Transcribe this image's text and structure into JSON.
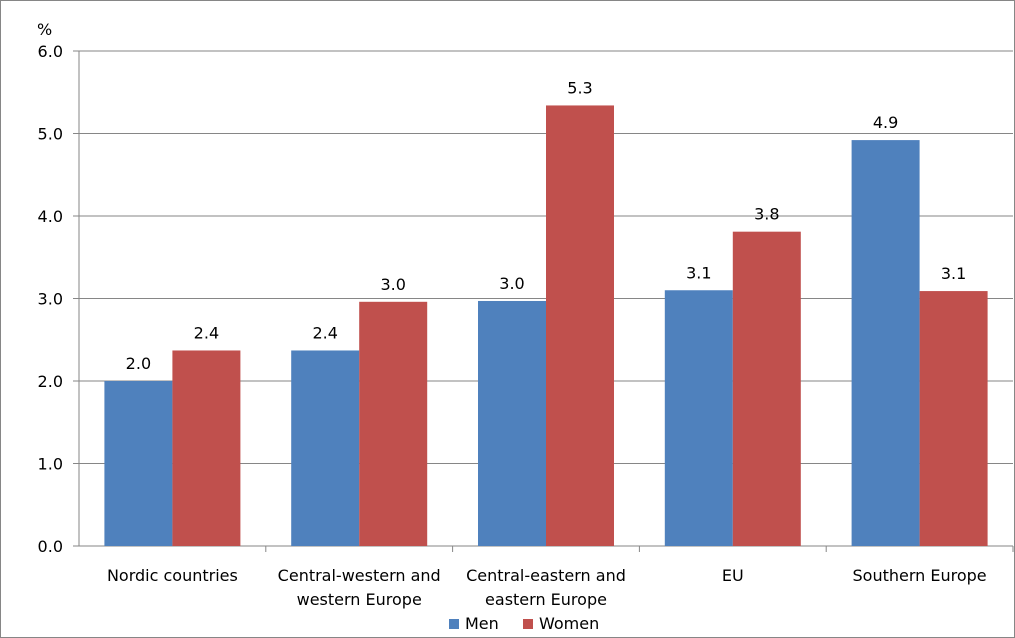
{
  "chart_data": {
    "type": "bar",
    "unit_label": "%",
    "categories": [
      [
        "Nordic countries"
      ],
      [
        "Central-western and",
        "western Europe"
      ],
      [
        "Central-eastern and",
        "eastern Europe"
      ],
      [
        "EU"
      ],
      [
        "Southern Europe"
      ]
    ],
    "series": [
      {
        "name": "Men",
        "color": "#4F81BD",
        "values": [
          2.0,
          2.37,
          2.97,
          3.1,
          4.92
        ],
        "labels": [
          "2.0",
          "2.4",
          "3.0",
          "3.1",
          "4.9"
        ]
      },
      {
        "name": "Women",
        "color": "#C0504D",
        "values": [
          2.37,
          2.96,
          5.34,
          3.81,
          3.09
        ],
        "labels": [
          "2.4",
          "3.0",
          "5.3",
          "3.8",
          "3.1"
        ]
      }
    ],
    "ylim": [
      0,
      6
    ],
    "yticks": [
      "0.0",
      "1.0",
      "2.0",
      "3.0",
      "4.0",
      "5.0",
      "6.0"
    ],
    "grid": true,
    "legend_position": "bottom"
  }
}
